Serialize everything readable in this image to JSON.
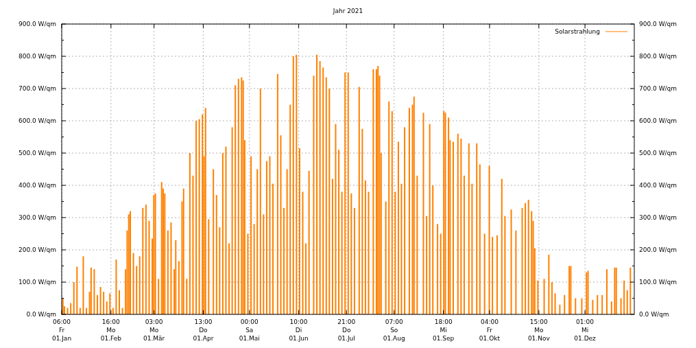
{
  "chart_data": {
    "type": "bar",
    "title": "Jahr 2021",
    "x": [
      "2021-01-02",
      "2021-01-03",
      "2021-01-05",
      "2021-01-07",
      "2021-01-09",
      "2021-01-11",
      "2021-01-13",
      "2021-01-15",
      "2021-01-17",
      "2021-01-19",
      "2021-01-20",
      "2021-01-22",
      "2021-01-24",
      "2021-01-26",
      "2021-01-28",
      "2021-01-30",
      "2021-02-01",
      "2021-02-03",
      "2021-02-05",
      "2021-02-07",
      "2021-02-09",
      "2021-02-11",
      "2021-02-12",
      "2021-02-13",
      "2021-02-14",
      "2021-02-16",
      "2021-02-18",
      "2021-02-20",
      "2021-02-22",
      "2021-02-24",
      "2021-02-26",
      "2021-02-28",
      "2021-03-01",
      "2021-03-02",
      "2021-03-04",
      "2021-03-06",
      "2021-03-07",
      "2021-03-08",
      "2021-03-10",
      "2021-03-12",
      "2021-03-14",
      "2021-03-15",
      "2021-03-17",
      "2021-03-19",
      "2021-03-20",
      "2021-03-22",
      "2021-03-24",
      "2021-03-26",
      "2021-03-28",
      "2021-03-30",
      "2021-04-01",
      "2021-04-02",
      "2021-04-03",
      "2021-04-05",
      "2021-04-08",
      "2021-04-10",
      "2021-04-12",
      "2021-04-14",
      "2021-04-16",
      "2021-04-18",
      "2021-04-20",
      "2021-04-22",
      "2021-04-24",
      "2021-04-26",
      "2021-04-27",
      "2021-04-28",
      "2021-04-30",
      "2021-05-02",
      "2021-05-04",
      "2021-05-06",
      "2021-05-08",
      "2021-05-10",
      "2021-05-12",
      "2021-05-14",
      "2021-05-16",
      "2021-05-19",
      "2021-05-21",
      "2021-05-23",
      "2021-05-25",
      "2021-05-27",
      "2021-05-29",
      "2021-05-31",
      "2021-06-02",
      "2021-06-04",
      "2021-06-06",
      "2021-06-08",
      "2021-06-11",
      "2021-06-13",
      "2021-06-15",
      "2021-06-17",
      "2021-06-19",
      "2021-06-21",
      "2021-06-23",
      "2021-06-25",
      "2021-06-27",
      "2021-06-29",
      "2021-07-01",
      "2021-07-03",
      "2021-07-05",
      "2021-07-07",
      "2021-07-10",
      "2021-07-12",
      "2021-07-14",
      "2021-07-16",
      "2021-07-19",
      "2021-07-21",
      "2021-07-22",
      "2021-07-23",
      "2021-07-24",
      "2021-07-27",
      "2021-07-29",
      "2021-07-31",
      "2021-08-02",
      "2021-08-04",
      "2021-08-06",
      "2021-08-08",
      "2021-08-11",
      "2021-08-13",
      "2021-08-14",
      "2021-08-16",
      "2021-08-20",
      "2021-08-22",
      "2021-08-24",
      "2021-08-26",
      "2021-08-29",
      "2021-08-31",
      "2021-09-02",
      "2021-09-03",
      "2021-09-05",
      "2021-09-06",
      "2021-09-08",
      "2021-09-11",
      "2021-09-13",
      "2021-09-15",
      "2021-09-18",
      "2021-09-20",
      "2021-09-23",
      "2021-09-25",
      "2021-09-28",
      "2021-10-01",
      "2021-10-03",
      "2021-10-06",
      "2021-10-09",
      "2021-10-11",
      "2021-10-15",
      "2021-10-18",
      "2021-10-22",
      "2021-10-24",
      "2021-10-26",
      "2021-10-28",
      "2021-10-29",
      "2021-10-30",
      "2021-11-01",
      "2021-11-05",
      "2021-11-08",
      "2021-11-10",
      "2021-11-12",
      "2021-11-15",
      "2021-11-18",
      "2021-11-21",
      "2021-11-22",
      "2021-11-25",
      "2021-11-29",
      "2021-12-02",
      "2021-12-03",
      "2021-12-06",
      "2021-12-09",
      "2021-12-12",
      "2021-12-15",
      "2021-12-18",
      "2021-12-20",
      "2021-12-21",
      "2021-12-24",
      "2021-12-26",
      "2021-12-28",
      "2021-12-30"
    ],
    "series": [
      {
        "name": "Solarstrahlung",
        "color": "#ff8000",
        "values": [
          50,
          25,
          20,
          35,
          100,
          148,
          20,
          180,
          20,
          70,
          145,
          140,
          60,
          85,
          70,
          40,
          65,
          20,
          170,
          75,
          20,
          140,
          260,
          310,
          320,
          190,
          150,
          180,
          330,
          340,
          290,
          235,
          370,
          375,
          110,
          410,
          390,
          375,
          260,
          285,
          140,
          230,
          165,
          350,
          390,
          110,
          500,
          430,
          600,
          605,
          620,
          490,
          640,
          295,
          450,
          370,
          270,
          500,
          520,
          220,
          580,
          710,
          730,
          735,
          725,
          540,
          250,
          490,
          280,
          450,
          700,
          310,
          475,
          490,
          405,
          745,
          555,
          330,
          450,
          650,
          800,
          805,
          515,
          380,
          220,
          445,
          740,
          805,
          785,
          765,
          735,
          700,
          420,
          590,
          510,
          380,
          750,
          750,
          375,
          330,
          705,
          575,
          415,
          380,
          760,
          760,
          770,
          740,
          500,
          350,
          660,
          630,
          380,
          535,
          405,
          580,
          640,
          650,
          675,
          430,
          625,
          305,
          590,
          400,
          280,
          250,
          630,
          625,
          610,
          540,
          535,
          560,
          545,
          430,
          530,
          405,
          530,
          465,
          250,
          460,
          240,
          245,
          420,
          305,
          325,
          260,
          330,
          345,
          355,
          320,
          290,
          205,
          105,
          110,
          185,
          100,
          65,
          30,
          60,
          150,
          150,
          50,
          50,
          130,
          135,
          45,
          60,
          60,
          140,
          40,
          145,
          145,
          50,
          105,
          75,
          145
        ]
      }
    ],
    "xlim": [
      "2021-01-01T06:00",
      "2022-01-01T12:00"
    ],
    "xticks": [
      {
        "value": "2021-01-01T06:00",
        "label": "06:00\nFr\n01.Jan"
      },
      {
        "value": "2021-02-01T16:00",
        "label": "16:00\nMo\n01.Feb"
      },
      {
        "value": "2021-03-01T03:00",
        "label": "03:00\nMo\n01.Mär"
      },
      {
        "value": "2021-04-01T13:00",
        "label": "13:00\nDo\n01.Apr"
      },
      {
        "value": "2021-05-01T00:00",
        "label": "00:00\nSa\n01.Mai"
      },
      {
        "value": "2021-06-01T10:00",
        "label": "10:00\nDi\n01.Jun"
      },
      {
        "value": "2021-07-01T21:00",
        "label": "21:00\nDo\n01.Jul"
      },
      {
        "value": "2021-08-01T07:00",
        "label": "07:00\nSo\n01.Aug"
      },
      {
        "value": "2021-09-01T18:00",
        "label": "18:00\nMi\n01.Sep"
      },
      {
        "value": "2021-10-01T04:00",
        "label": "04:00\nFr\n01.Okt"
      },
      {
        "value": "2021-11-01T15:00",
        "label": "15:00\nMo\n01.Nov"
      },
      {
        "value": "2021-12-01T01:00",
        "label": "01:00\nMi\n01.Dez"
      }
    ],
    "ylim": [
      0,
      900
    ],
    "yticks": [
      {
        "value": 0,
        "label": "0.0 W/qm"
      },
      {
        "value": 50,
        "label": null
      },
      {
        "value": 100,
        "label": "100.0 W/qm"
      },
      {
        "value": 150,
        "label": null
      },
      {
        "value": 200,
        "label": "200.0 W/qm"
      },
      {
        "value": 250,
        "label": null
      },
      {
        "value": 300,
        "label": "300.0 W/qm"
      },
      {
        "value": 350,
        "label": null
      },
      {
        "value": 400,
        "label": "400.0 W/qm"
      },
      {
        "value": 450,
        "label": null
      },
      {
        "value": 500,
        "label": "500.0 W/qm"
      },
      {
        "value": 550,
        "label": null
      },
      {
        "value": 600,
        "label": "600.0 W/qm"
      },
      {
        "value": 650,
        "label": null
      },
      {
        "value": 700,
        "label": "700.0 W/qm"
      },
      {
        "value": 750,
        "label": null
      },
      {
        "value": 800,
        "label": "800.0 W/qm"
      },
      {
        "value": 850,
        "label": null
      },
      {
        "value": 900,
        "label": "900.0 W/qm"
      }
    ],
    "y2lim": [
      0,
      900
    ],
    "y2ticks": [
      {
        "value": 0,
        "label": "0.0 W/qm"
      },
      {
        "value": 50,
        "label": null
      },
      {
        "value": 100,
        "label": "100.0 W/qm"
      },
      {
        "value": 150,
        "label": null
      },
      {
        "value": 200,
        "label": "200.0 W/qm"
      },
      {
        "value": 250,
        "label": null
      },
      {
        "value": 300,
        "label": "300.0 W/qm"
      },
      {
        "value": 350,
        "label": null
      },
      {
        "value": 400,
        "label": "400.0 W/qm"
      },
      {
        "value": 450,
        "label": null
      },
      {
        "value": 500,
        "label": "500.0 W/qm"
      },
      {
        "value": 550,
        "label": null
      },
      {
        "value": 600,
        "label": "600.0 W/qm"
      },
      {
        "value": 650,
        "label": null
      },
      {
        "value": 700,
        "label": "700.0 W/qm"
      },
      {
        "value": 750,
        "label": null
      },
      {
        "value": 800,
        "label": "800.0 W/qm"
      },
      {
        "value": 850,
        "label": null
      },
      {
        "value": 900,
        "label": "900.0 W/qm"
      }
    ],
    "grid": true,
    "legend": "top right"
  }
}
